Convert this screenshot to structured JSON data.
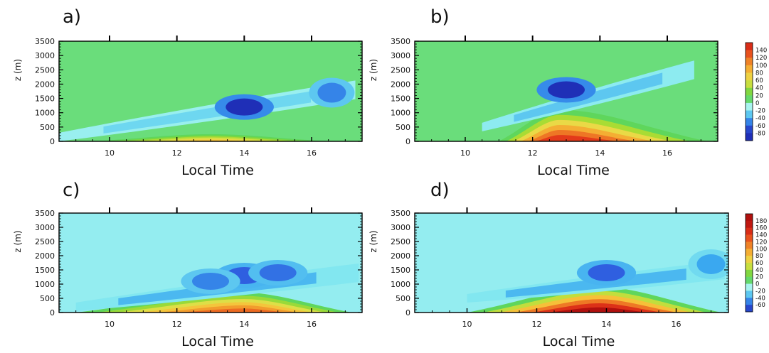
{
  "chart_data": [
    {
      "panel_label": "a)",
      "type": "heatmap",
      "xlabel": "Local Time",
      "ylabel": "z (m)",
      "xlim": [
        8.5,
        17.5
      ],
      "ylim": [
        0,
        3500
      ],
      "xticks": [
        10,
        12,
        14,
        16
      ],
      "yticks": [
        0,
        500,
        1000,
        1500,
        2000,
        2500,
        3000,
        3500
      ],
      "background_value": 5,
      "features": [
        {
          "kind": "warm_near_surface",
          "value": 80,
          "x_range": [
            9.5,
            16.5
          ],
          "z_top": 250
        },
        {
          "kind": "cool_band",
          "value": -25,
          "x_range": [
            8.5,
            17.3
          ],
          "z_center_start": 150,
          "z_center_end": 1800
        },
        {
          "kind": "min_core",
          "value": -80,
          "x": 14,
          "z": 1200
        },
        {
          "kind": "secondary_core",
          "value": -50,
          "x": 16.6,
          "z": 1700
        }
      ]
    },
    {
      "panel_label": "b)",
      "type": "heatmap",
      "xlabel": "Local Time",
      "ylabel": "z (m)",
      "xlim": [
        8.5,
        17.5
      ],
      "ylim": [
        0,
        3500
      ],
      "xticks": [
        10,
        12,
        14,
        16
      ],
      "yticks": [
        0,
        500,
        1000,
        1500,
        2000,
        2500,
        3000,
        3500
      ],
      "colorbar_ticks": [
        140,
        120,
        100,
        80,
        60,
        40,
        20,
        0,
        -20,
        -40,
        -60,
        -80
      ],
      "background_value": 5,
      "features": [
        {
          "kind": "warm_near_surface",
          "value": 140,
          "x_range": [
            11,
            17.2
          ],
          "z_top": 1100,
          "peak_x": 12.8
        },
        {
          "kind": "cool_band",
          "value": -30,
          "x_range": [
            10.5,
            16.8
          ],
          "z_center_start": 500,
          "z_center_end": 2500
        },
        {
          "kind": "min_core",
          "value": -80,
          "x": 13,
          "z": 1800
        }
      ]
    },
    {
      "panel_label": "c)",
      "type": "heatmap",
      "xlabel": "Local Time",
      "ylabel": "z (m)",
      "xlim": [
        8.5,
        17.5
      ],
      "ylim": [
        0,
        3500
      ],
      "xticks": [
        10,
        12,
        14,
        16
      ],
      "yticks": [
        0,
        500,
        1000,
        1500,
        2000,
        2500,
        3000,
        3500
      ],
      "background_value": -15,
      "features": [
        {
          "kind": "warm_near_surface",
          "value": 120,
          "x_range": [
            9,
            17.2
          ],
          "z_top": 700,
          "peak_x": 14
        },
        {
          "kind": "cool_band",
          "value": -35,
          "x_range": [
            9,
            17.4
          ],
          "z_center_start": 200,
          "z_center_end": 1400
        },
        {
          "kind": "min_core",
          "value": -60,
          "x": 14,
          "z": 1300
        },
        {
          "kind": "min_core",
          "value": -55,
          "x": 15,
          "z": 1400
        },
        {
          "kind": "min_core",
          "value": -50,
          "x": 13,
          "z": 1100
        }
      ]
    },
    {
      "panel_label": "d)",
      "type": "heatmap",
      "xlabel": "Local Time",
      "ylabel": "z (m)",
      "xlim": [
        8.5,
        17.5
      ],
      "ylim": [
        0,
        3500
      ],
      "xticks": [
        10,
        12,
        14,
        16
      ],
      "yticks": [
        0,
        500,
        1000,
        1500,
        2000,
        2500,
        3000,
        3500
      ],
      "colorbar_ticks": [
        180,
        160,
        140,
        120,
        100,
        80,
        60,
        40,
        20,
        0,
        -20,
        -40,
        -60
      ],
      "background_value": -15,
      "features": [
        {
          "kind": "warm_near_surface",
          "value": 180,
          "x_range": [
            10,
            17.3
          ],
          "z_top": 900,
          "peak_x": 13.8
        },
        {
          "kind": "cool_band",
          "value": -35,
          "x_range": [
            10,
            17.4
          ],
          "z_center_start": 500,
          "z_center_end": 1500
        },
        {
          "kind": "min_core",
          "value": -60,
          "x": 14,
          "z": 1400
        },
        {
          "kind": "secondary_core",
          "value": -40,
          "x": 17,
          "z": 1700
        }
      ]
    }
  ]
}
